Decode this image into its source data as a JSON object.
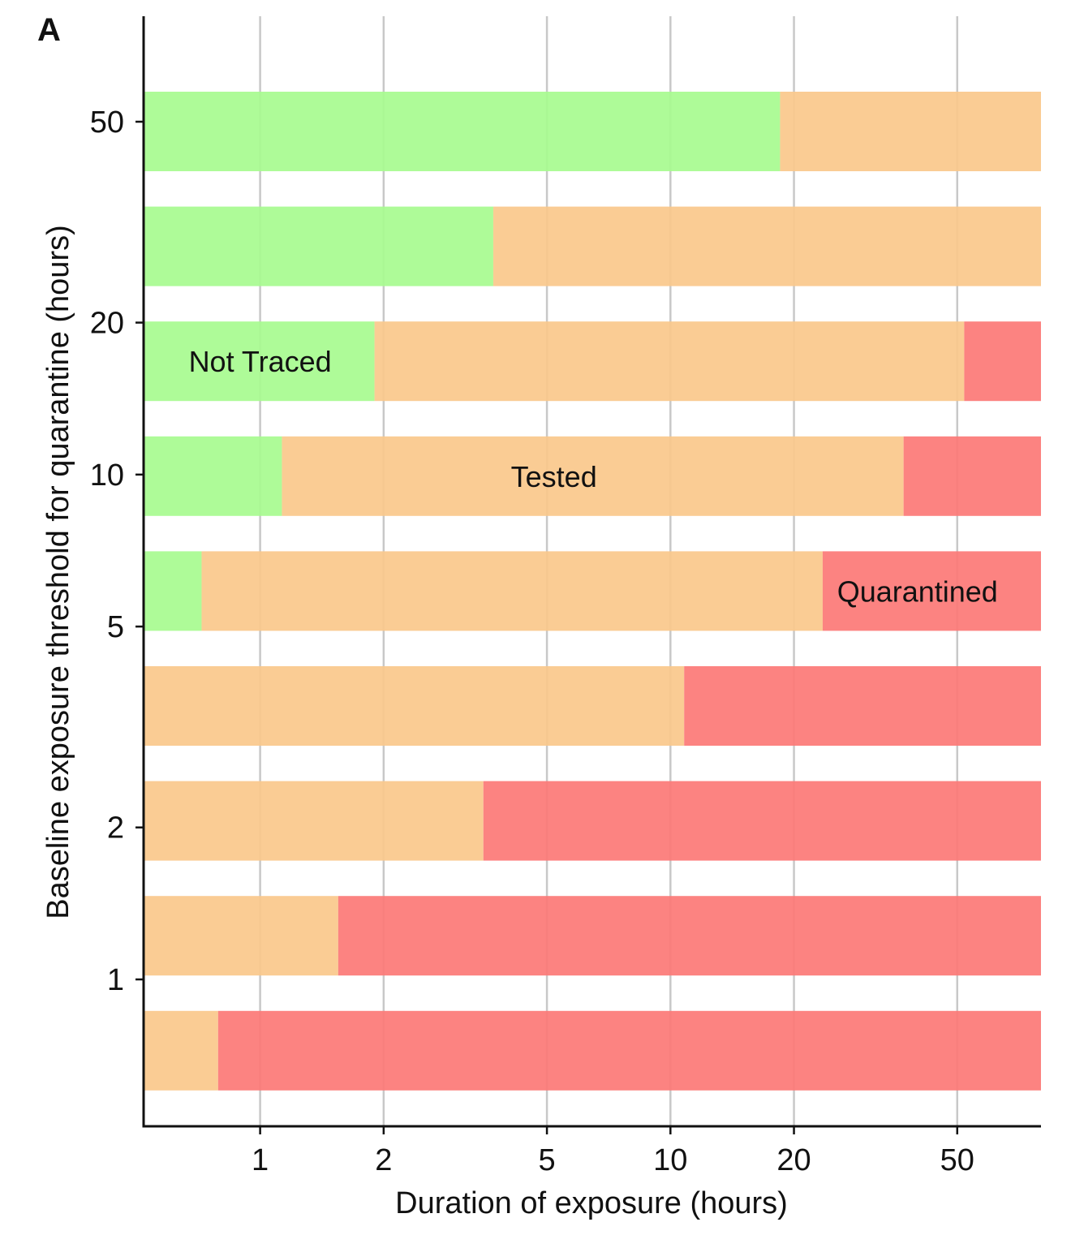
{
  "panel_label": "A",
  "chart_data": {
    "type": "bar",
    "orientation": "horizontal",
    "stacked": true,
    "xlabel": "Duration of exposure (hours)",
    "ylabel": "Baseline exposure threshold for quarantine (hours)",
    "xscale": "log",
    "yscale": "log",
    "xlim": [
      0.52,
      80
    ],
    "x_ticks": [
      1,
      2,
      5,
      10,
      20,
      50
    ],
    "x_tick_labels": [
      "1",
      "2",
      "5",
      "10",
      "20",
      "50"
    ],
    "y_ticks": [
      1,
      2,
      5,
      10,
      20,
      50
    ],
    "y_tick_labels": [
      "1",
      "2",
      "5",
      "10",
      "20",
      "50"
    ],
    "grid": "vertical lines at x ticks",
    "legend": "none; regions labeled inline",
    "categories": [
      50,
      30,
      20,
      12,
      7,
      4,
      2,
      1.2,
      0.7
    ],
    "series": [
      {
        "name": "Not Traced",
        "color": "#a7fb8f",
        "ends": [
          18.5,
          3.7,
          1.9,
          1.13,
          0.72,
          0.52,
          0.52,
          0.52,
          0.52
        ]
      },
      {
        "name": "Tested",
        "color": "#fac88b",
        "ends": [
          80,
          80,
          52,
          37,
          23.5,
          10.8,
          3.5,
          1.55,
          0.79
        ]
      },
      {
        "name": "Quarantined",
        "color": "#fc7876",
        "ends": [
          80,
          80,
          80,
          80,
          80,
          80,
          80,
          80,
          80
        ]
      }
    ],
    "annotations": [
      {
        "text": "Not Traced",
        "row": 2,
        "x": 1.0
      },
      {
        "text": "Tested",
        "row": 3,
        "x": 5.2
      },
      {
        "text": "Quarantined",
        "row": 4,
        "x": 40
      }
    ]
  }
}
